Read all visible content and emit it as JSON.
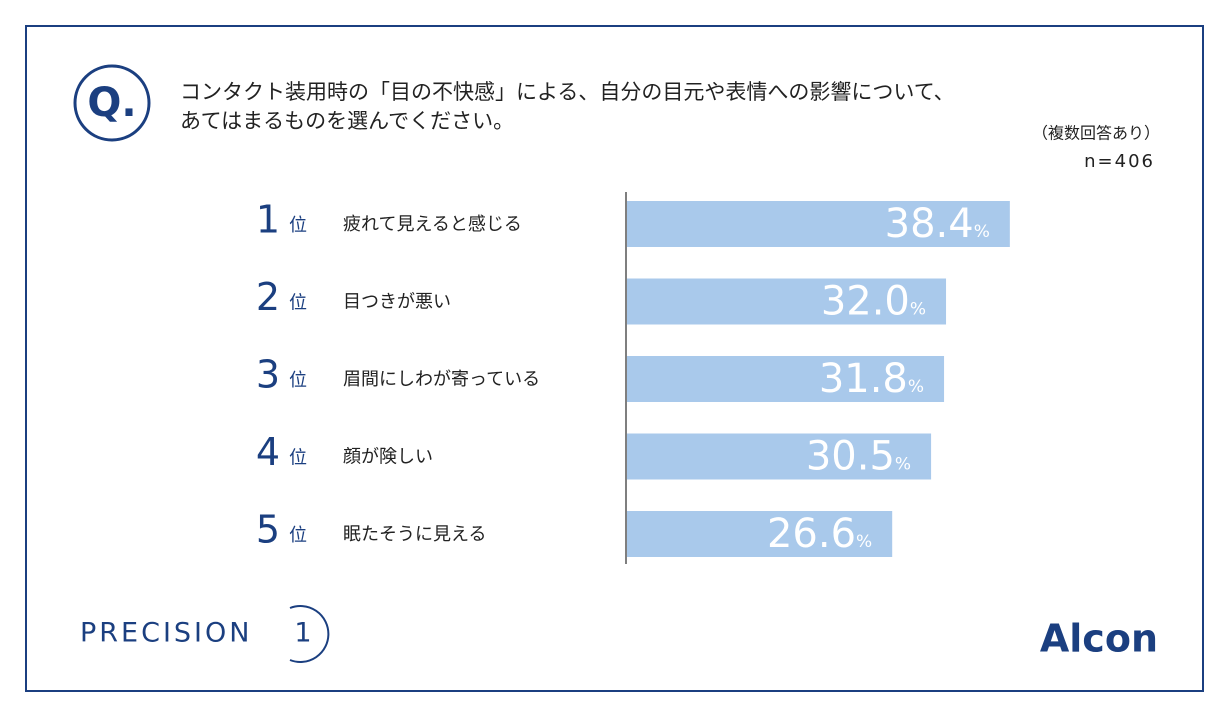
{
  "chart_data": {
    "type": "bar",
    "badge": "Q.",
    "title_lines": [
      "コンタクト装用時の「目の不快感」による、自分の目元や表情への影響について、",
      "あてはまるものを選んでください。"
    ],
    "note": "（複数回答あり）",
    "sample": "n=406",
    "ranks": [
      "1",
      "2",
      "3",
      "4",
      "5"
    ],
    "rank_suffix": "位",
    "categories": [
      "疲れて見えると感じる",
      "目つきが悪い",
      "眉間にしわが寄っている",
      "顔が険しい",
      "眠たそうに見える"
    ],
    "values": [
      38.4,
      32.0,
      31.8,
      30.5,
      26.6
    ],
    "value_labels": [
      "38.4",
      "32.0",
      "31.8",
      "30.5",
      "26.6"
    ],
    "value_unit": "%",
    "color": "#a9c9eb",
    "brand_left": "PRECISION",
    "brand_left_mark": "1",
    "brand_right": "Alcon"
  }
}
